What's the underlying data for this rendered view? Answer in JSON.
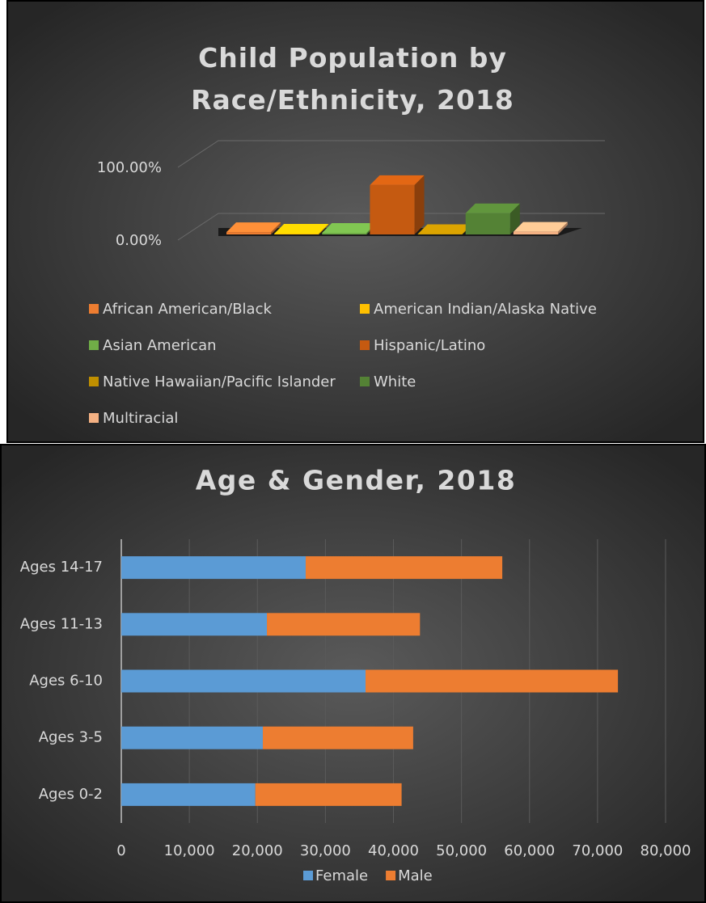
{
  "chart_data": [
    {
      "type": "column3d",
      "title": "Child Population by Race/Ethnicity, 2018",
      "categories": [
        "African American/Black",
        "American Indian/Alaska Native",
        "Asian American",
        "Hispanic/Latino",
        "Native Hawaiian/Pacific Islander",
        "White",
        "Multiracial"
      ],
      "values": [
        3,
        1,
        2,
        63,
        0.5,
        27,
        3.5
      ],
      "colors": [
        "#ed7d31",
        "#ffc000",
        "#70ad47",
        "#c55a11",
        "#bf8f00",
        "#548235",
        "#f4b183"
      ],
      "ylim": [
        0,
        100
      ],
      "yticks": [
        {
          "value": 0,
          "label": "0.00%"
        },
        {
          "value": 100,
          "label": "100.00%"
        }
      ],
      "grid": true,
      "legend": "bottom"
    },
    {
      "type": "barh",
      "title": "Age & Gender, 2018",
      "stacked": true,
      "categories": [
        "Ages 0-2",
        "Ages 3-5",
        "Ages 6-10",
        "Ages 11-13",
        "Ages 14-17"
      ],
      "series": [
        {
          "name": "Female",
          "color": "#5b9bd5",
          "values": [
            19700,
            20800,
            35900,
            21400,
            27100
          ]
        },
        {
          "name": "Male",
          "color": "#ed7d31",
          "values": [
            21500,
            22100,
            37100,
            22500,
            28900
          ]
        }
      ],
      "xlim": [
        0,
        80000
      ],
      "xticks": [
        0,
        {
          "value": 10000,
          "label": "10,000"
        },
        {
          "value": 20000,
          "label": "20,000"
        },
        {
          "value": 30000,
          "label": "30,000"
        },
        {
          "value": 40000,
          "label": "40,000"
        },
        {
          "value": 50000,
          "label": "50,000"
        },
        {
          "value": 60000,
          "label": "60,000"
        },
        {
          "value": 70000,
          "label": "70,000"
        },
        {
          "value": 80000,
          "label": "80,000"
        }
      ],
      "grid": true,
      "legend": "bottom"
    }
  ]
}
